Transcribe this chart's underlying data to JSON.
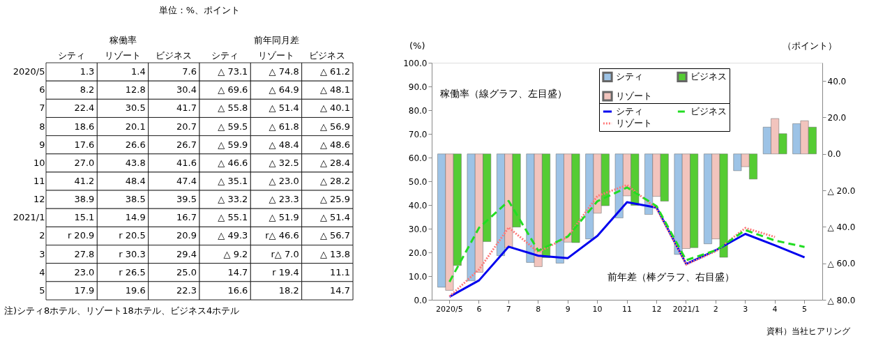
{
  "chart_data": [
    {
      "type": "heatmap",
      "title": "単位：%、ポイント",
      "categories": [
        "シティ",
        "リゾート",
        "ビジネス",
        "シティ",
        "リゾート",
        "ビジネス"
      ],
      "y_categories": [
        "2020/5",
        "6",
        "7",
        "8",
        "9",
        "10",
        "11",
        "12",
        "2021/1",
        "2",
        "3",
        "4",
        "5"
      ],
      "cells": [
        [
          null,
          null,
          null,
          null,
          null,
          null
        ],
        [
          null,
          null,
          null,
          null,
          null,
          null
        ],
        [
          null,
          null,
          null,
          null,
          null,
          null
        ],
        [
          null,
          null,
          null,
          null,
          null,
          null
        ],
        [
          null,
          null,
          null,
          null,
          null,
          null
        ],
        [
          null,
          null,
          null,
          null,
          null,
          null
        ],
        [
          null,
          null,
          null,
          null,
          null,
          null
        ],
        [
          null,
          null,
          null,
          null,
          null,
          null
        ],
        [
          null,
          null,
          null,
          null,
          null,
          null
        ],
        [
          null,
          null,
          null,
          null,
          null,
          null
        ],
        [
          null,
          null,
          null,
          null,
          null,
          null
        ],
        [
          null,
          null,
          null,
          null,
          null,
          null
        ],
        [
          null,
          null,
          null,
          null,
          null,
          null
        ]
      ],
      "cell_labels": [
        [
          "1.3",
          "1.4",
          "7.6",
          "△ 73.1",
          "△ 74.8",
          "△ 61.2"
        ],
        [
          "8.2",
          "12.8",
          "30.4",
          "△ 69.6",
          "△ 64.9",
          "△ 48.1"
        ],
        [
          "22.4",
          "30.5",
          "41.7",
          "△ 55.8",
          "△ 51.4",
          "△ 40.1"
        ],
        [
          "18.6",
          "20.1",
          "20.7",
          "△ 59.5",
          "△ 61.8",
          "△ 56.9"
        ],
        [
          "17.6",
          "26.6",
          "26.7",
          "△ 59.9",
          "△ 48.4",
          "△ 48.6"
        ],
        [
          "27.0",
          "43.8",
          "41.6",
          "△ 46.6",
          "△ 32.5",
          "△ 28.4"
        ],
        [
          "41.2",
          "48.4",
          "47.4",
          "△ 35.1",
          "△ 23.0",
          "△ 28.2"
        ],
        [
          "38.9",
          "38.5",
          "39.5",
          "△ 33.2",
          "△ 23.3",
          "△ 25.9"
        ],
        [
          "15.1",
          "14.9",
          "16.7",
          "△ 55.1",
          "△ 51.9",
          "△ 51.4"
        ],
        [
          "r 20.9",
          "r 20.5",
          "20.9",
          "△ 49.3",
          "r△ 46.6",
          "△ 56.7"
        ],
        [
          "27.8",
          "r 30.3",
          "29.4",
          "△ 9.2",
          "r△ 7.0",
          "△ 13.8"
        ],
        [
          "23.0",
          "r 26.5",
          "25.0",
          "14.7",
          "r 19.4",
          "11.1"
        ],
        [
          "17.9",
          "19.6",
          "22.3",
          "16.6",
          "18.2",
          "14.7"
        ]
      ],
      "annotations": [
        "稼働率",
        "前年同月差",
        "注)シティ8ホテル、リゾート18ホテル、ビジネス4ホテル"
      ]
    },
    {
      "type": "bar",
      "ylabel": "(%)",
      "y2label": "（ポイント）",
      "categories": [
        "2020/5",
        "6",
        "7",
        "8",
        "9",
        "10",
        "11",
        "12",
        "2021/1",
        "2",
        "3",
        "4",
        "5"
      ],
      "series": [
        {
          "name": "シティ",
          "type": "bar",
          "axis": "y2",
          "color": "#9dc3e6",
          "values": [
            -73.1,
            -69.6,
            -55.8,
            -59.5,
            -59.9,
            -46.6,
            -35.1,
            -33.2,
            -55.1,
            -49.3,
            -9.2,
            14.7,
            16.6
          ]
        },
        {
          "name": "リゾート",
          "type": "bar",
          "axis": "y2",
          "color": "#f2c4bd",
          "values": [
            -74.8,
            -64.9,
            -51.4,
            -61.8,
            -48.4,
            -32.5,
            -23.0,
            -23.3,
            -51.9,
            -46.6,
            -7.0,
            19.4,
            18.2
          ]
        },
        {
          "name": "ビジネス",
          "type": "bar",
          "axis": "y2",
          "color": "#55cc33",
          "values": [
            -61.2,
            -48.1,
            -40.1,
            -56.9,
            -48.6,
            -28.4,
            -28.2,
            -25.9,
            -51.4,
            -56.7,
            -13.8,
            11.1,
            14.7
          ]
        },
        {
          "name": "シティ",
          "type": "line",
          "axis": "y",
          "color": "#0000ee",
          "line_style": "solid",
          "values": [
            1.3,
            8.2,
            22.4,
            18.6,
            17.6,
            27.0,
            41.2,
            38.9,
            15.1,
            20.9,
            27.8,
            23.0,
            17.9
          ]
        },
        {
          "name": "リゾート",
          "type": "line",
          "axis": "y",
          "color": "#ff7777",
          "line_style": "dotted",
          "values": [
            1.4,
            12.8,
            30.5,
            20.1,
            26.6,
            43.8,
            48.4,
            38.5,
            14.9,
            20.5,
            30.3,
            26.5,
            null
          ]
        },
        {
          "name": "ビジネス",
          "type": "line",
          "axis": "y",
          "color": "#22dd22",
          "line_style": "dashed",
          "values": [
            7.6,
            30.4,
            41.7,
            20.7,
            26.7,
            41.6,
            47.4,
            39.5,
            16.7,
            20.9,
            29.4,
            25.0,
            22.3
          ]
        }
      ],
      "ylim": [
        0,
        100
      ],
      "yticks": [
        {
          "value": 0,
          "label": "0.0"
        },
        {
          "value": 10,
          "label": "10.0"
        },
        {
          "value": 20,
          "label": "20.0"
        },
        {
          "value": 30,
          "label": "30.0"
        },
        {
          "value": 40,
          "label": "40.0"
        },
        {
          "value": 50,
          "label": "50.0"
        },
        {
          "value": 60,
          "label": "60.0"
        },
        {
          "value": 70,
          "label": "70.0"
        },
        {
          "value": 80,
          "label": "80.0"
        },
        {
          "value": 90,
          "label": "90.0"
        },
        {
          "value": 100,
          "label": "100.0"
        }
      ],
      "y2lim": [
        -80,
        50
      ],
      "y2ticks": [
        {
          "value": 40,
          "label": "40.0"
        },
        {
          "value": 20,
          "label": "20.0"
        },
        {
          "value": 0,
          "label": "0.0"
        },
        {
          "value": -20,
          "label": "△ 20.0"
        },
        {
          "value": -40,
          "label": "△ 40.0"
        },
        {
          "value": -60,
          "label": "△ 60.0"
        },
        {
          "value": -80,
          "label": "△ 80.0"
        }
      ],
      "legend": "top",
      "annotations": [
        "稼働率（線グラフ、左目盛）",
        "前年差（棒グラフ、右目盛）",
        "資料）当社ヒアリング"
      ]
    }
  ]
}
